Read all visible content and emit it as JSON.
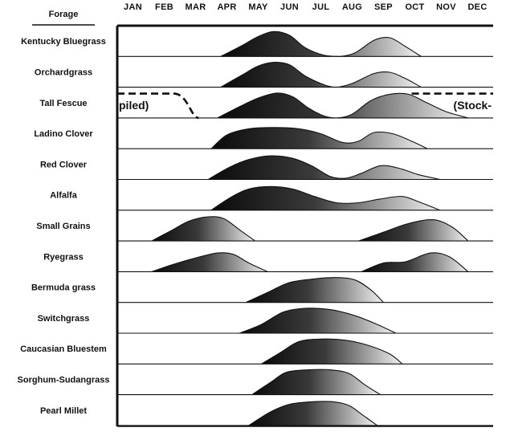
{
  "chart_data": {
    "type": "area",
    "title": "",
    "column_header": "Forage",
    "categories": [
      "JAN",
      "FEB",
      "MAR",
      "APR",
      "MAY",
      "JUN",
      "JUL",
      "AUG",
      "SEP",
      "OCT",
      "NOV",
      "DEC"
    ],
    "series": [
      {
        "name": "Kentucky Bluegrass",
        "x": [
          3.3,
          4.0,
          4.5,
          5.0,
          5.5,
          6.0,
          6.6,
          7.1,
          7.6,
          8.2,
          8.7,
          9.2,
          9.7
        ],
        "values": [
          0,
          0.45,
          0.8,
          1.0,
          0.85,
          0.35,
          0.05,
          0,
          0.15,
          0.65,
          0.75,
          0.4,
          0
        ]
      },
      {
        "name": "Orchardgrass",
        "x": [
          3.3,
          4.0,
          4.5,
          5.0,
          5.5,
          6.0,
          6.6,
          7.0,
          7.5,
          8.2,
          8.7,
          9.2,
          9.7
        ],
        "values": [
          0,
          0.5,
          0.85,
          1.0,
          0.9,
          0.45,
          0.1,
          0,
          0.15,
          0.55,
          0.6,
          0.35,
          0
        ]
      },
      {
        "name": "Tall Fescue",
        "x": [
          3.2,
          3.9,
          4.5,
          5.1,
          5.6,
          6.1,
          6.6,
          7.0,
          7.5,
          8.1,
          8.7,
          9.3,
          9.9,
          10.5,
          11.2
        ],
        "values": [
          0,
          0.45,
          0.8,
          1.0,
          0.85,
          0.4,
          0.08,
          0,
          0.15,
          0.7,
          0.95,
          0.95,
          0.6,
          0.25,
          0
        ]
      },
      {
        "name": "Ladino Clover",
        "x": [
          3.0,
          3.5,
          4.2,
          5.0,
          5.8,
          6.5,
          7.2,
          7.7,
          8.2,
          8.8,
          9.4,
          9.9
        ],
        "values": [
          0,
          0.55,
          0.8,
          0.85,
          0.8,
          0.6,
          0.25,
          0.3,
          0.65,
          0.6,
          0.3,
          0
        ]
      },
      {
        "name": "Red Clover",
        "x": [
          2.9,
          3.6,
          4.2,
          4.9,
          5.6,
          6.2,
          6.8,
          7.3,
          7.8,
          8.4,
          9.0,
          9.6,
          10.3
        ],
        "values": [
          0,
          0.5,
          0.8,
          0.95,
          0.85,
          0.55,
          0.12,
          0.05,
          0.25,
          0.55,
          0.45,
          0.2,
          0
        ]
      },
      {
        "name": "Alfalfa",
        "x": [
          3.0,
          3.6,
          4.2,
          4.9,
          5.6,
          6.3,
          7.0,
          7.7,
          8.4,
          9.1,
          9.7,
          10.3
        ],
        "values": [
          0,
          0.5,
          0.85,
          0.95,
          0.85,
          0.55,
          0.3,
          0.3,
          0.45,
          0.55,
          0.3,
          0
        ]
      },
      {
        "name": "Small Grains",
        "x": [
          1.1,
          1.7,
          2.3,
          2.9,
          3.4,
          3.9,
          4.4
        ],
        "values": [
          0,
          0.4,
          0.8,
          0.97,
          0.9,
          0.45,
          0
        ],
        "x2": [
          7.7,
          8.5,
          9.3,
          10.1,
          10.7,
          11.2
        ],
        "values2": [
          0,
          0.35,
          0.7,
          0.85,
          0.55,
          0
        ]
      },
      {
        "name": "Ryegrass",
        "x": [
          1.1,
          1.8,
          2.5,
          3.2,
          3.7,
          4.2,
          4.8
        ],
        "values": [
          0,
          0.3,
          0.55,
          0.75,
          0.7,
          0.35,
          0
        ],
        "x2": [
          7.8,
          8.5,
          9.2,
          10.0,
          10.6,
          11.2
        ],
        "values2": [
          0,
          0.35,
          0.4,
          0.75,
          0.6,
          0
        ]
      },
      {
        "name": "Bermuda grass",
        "x": [
          4.1,
          4.8,
          5.5,
          6.3,
          7.0,
          7.6,
          8.1,
          8.5
        ],
        "values": [
          0,
          0.4,
          0.8,
          0.95,
          1.0,
          0.9,
          0.5,
          0
        ]
      },
      {
        "name": "Switchgrass",
        "x": [
          3.9,
          4.6,
          5.3,
          6.0,
          6.8,
          7.6,
          8.3,
          8.9
        ],
        "values": [
          0,
          0.35,
          0.85,
          1.0,
          0.95,
          0.7,
          0.35,
          0
        ]
      },
      {
        "name": "Caucasian Bluestem",
        "x": [
          4.6,
          5.2,
          5.8,
          6.5,
          7.3,
          8.0,
          8.7,
          9.1
        ],
        "values": [
          0,
          0.45,
          0.9,
          1.0,
          0.95,
          0.75,
          0.4,
          0
        ]
      },
      {
        "name": "Sorghum-Sudangrass",
        "x": [
          4.3,
          4.9,
          5.4,
          6.1,
          6.8,
          7.4,
          7.9,
          8.4
        ],
        "values": [
          0,
          0.5,
          0.9,
          1.0,
          1.0,
          0.85,
          0.4,
          0
        ]
      },
      {
        "name": "Pearl Millet",
        "x": [
          4.2,
          4.9,
          5.5,
          6.2,
          6.9,
          7.4,
          7.8,
          8.3
        ],
        "values": [
          0,
          0.55,
          0.85,
          0.95,
          0.95,
          0.8,
          0.45,
          0
        ]
      }
    ],
    "annotations": [
      {
        "text": "piled)",
        "row": "Tall Fescue",
        "side": "left"
      },
      {
        "text": "(Stock-",
        "row": "Tall Fescue",
        "side": "right"
      }
    ],
    "stockpiled_dashes": {
      "row": "Tall Fescue",
      "left_x": [
        0,
        1.8,
        2.6
      ],
      "right_x": [
        9.4,
        12
      ]
    },
    "xlim": [
      0,
      12
    ],
    "grid": false,
    "legend": "none"
  }
}
